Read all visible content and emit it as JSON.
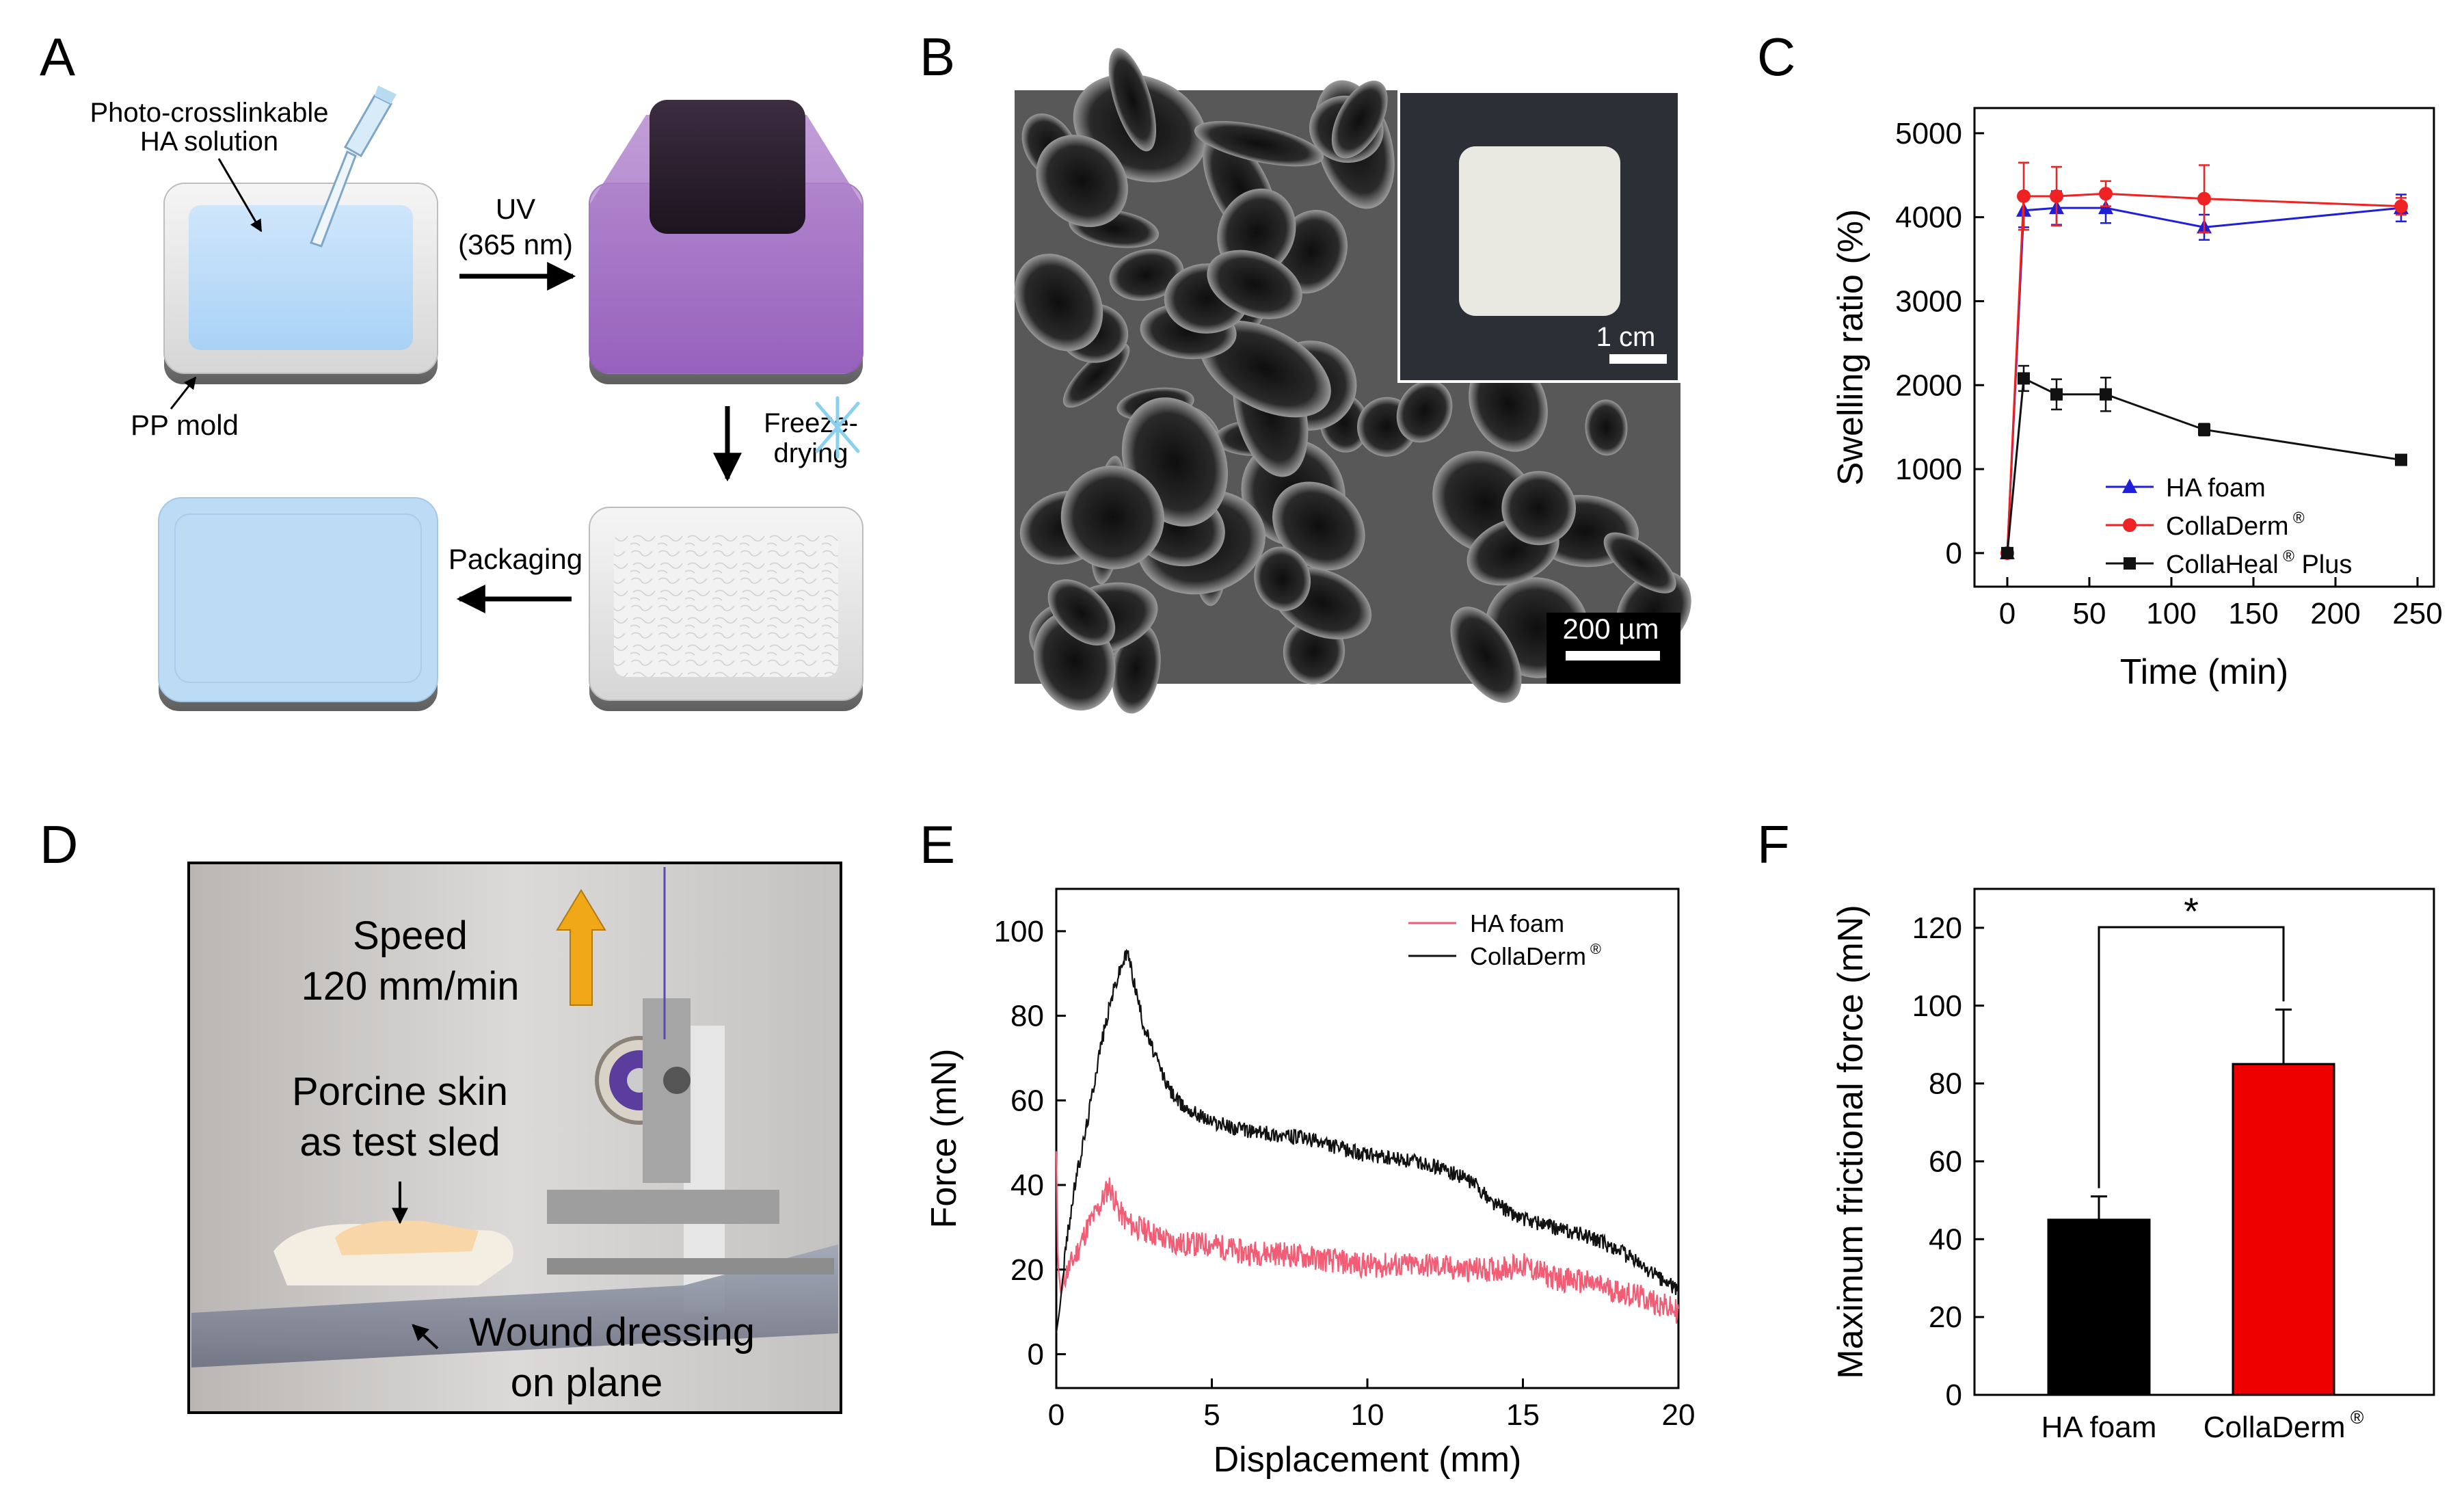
{
  "panel_letters": {
    "A": "A",
    "B": "B",
    "C": "C",
    "D": "D",
    "E": "E",
    "F": "F"
  },
  "panel_a": {
    "solution_label": [
      "Photo-crosslinkable",
      "HA solution"
    ],
    "uv_label": [
      "UV",
      "(365 nm)"
    ],
    "mold_label": "PP mold",
    "freeze_label": [
      "Freeze-",
      "drying"
    ],
    "packaging_label": "Packaging"
  },
  "panel_b": {
    "scale_main": "200 µm",
    "scale_inset": "1 cm"
  },
  "panel_d": {
    "speed_label": [
      "Speed",
      "120 mm/min"
    ],
    "sled_label": [
      "Porcine skin",
      "as test sled"
    ],
    "dressing_label": [
      "Wound dressing",
      "on plane"
    ]
  },
  "colors": {
    "red": "#ee2222",
    "blue": "#1f1fd8",
    "black": "#111111",
    "pink": "#f25c74",
    "arrow": "#f0a818"
  },
  "chart_data": [
    {
      "type": "line",
      "panel": "C",
      "xlabel": "Time (min)",
      "ylabel": "Swelling ratio (%)",
      "xlim": [
        -20,
        260
      ],
      "ylim": [
        -400,
        5300
      ],
      "xticks": [
        0,
        50,
        100,
        150,
        200,
        250
      ],
      "yticks": [
        0,
        1000,
        2000,
        3000,
        4000,
        5000
      ],
      "legend_position": "bottom-right",
      "x": [
        0,
        10,
        30,
        60,
        120,
        240
      ],
      "series": [
        {
          "name": "HA foam",
          "color": "#1f1fd8",
          "marker": "triangle",
          "values": [
            0,
            4080,
            4110,
            4110,
            3880,
            4110
          ],
          "errors": [
            0,
            200,
            200,
            180,
            150,
            160
          ]
        },
        {
          "name": "CollaDerm",
          "sup": "®",
          "color": "#ee2222",
          "marker": "circle",
          "values": [
            0,
            4250,
            4250,
            4280,
            4220,
            4130
          ],
          "errors": [
            0,
            400,
            350,
            150,
            400,
            100
          ]
        },
        {
          "name": "CollaHeal",
          "sup": "®",
          "suffix": " Plus",
          "color": "#111111",
          "marker": "square",
          "values": [
            0,
            2080,
            1890,
            1890,
            1470,
            1110
          ],
          "errors": [
            0,
            150,
            180,
            200,
            70,
            40
          ]
        }
      ]
    },
    {
      "type": "line",
      "panel": "E",
      "xlabel": "Displacement (mm)",
      "ylabel": "Force (mN)",
      "xlim": [
        0,
        20
      ],
      "ylim": [
        -8,
        110
      ],
      "xticks": [
        0,
        5,
        10,
        15,
        20
      ],
      "yticks": [
        0,
        20,
        40,
        60,
        80,
        100
      ],
      "legend_position": "top-right",
      "series": [
        {
          "name": "HA foam",
          "color": "#f25c74",
          "noise": 3,
          "x": [
            0,
            0.05,
            0.15,
            0.3,
            0.6,
            1.0,
            1.4,
            1.7,
            2.0,
            2.3,
            2.6,
            3.0,
            3.5,
            4.0,
            5.0,
            6.0,
            7.0,
            8.0,
            9.0,
            10.0,
            11.0,
            12.0,
            13.0,
            14.0,
            15.0,
            16.0,
            17.0,
            18.0,
            19.0,
            20.0
          ],
          "values": [
            48,
            22,
            14,
            19,
            23,
            30,
            35,
            40,
            34,
            31,
            30,
            29,
            27,
            26,
            26,
            24,
            24,
            23,
            22,
            21,
            21,
            21,
            20,
            20,
            21,
            18,
            17,
            15,
            13,
            10
          ]
        },
        {
          "name": "CollaDerm",
          "sup": "®",
          "color": "#111111",
          "noise": 1.8,
          "x": [
            0,
            0.1,
            0.3,
            0.6,
            1.0,
            1.4,
            1.8,
            2.1,
            2.3,
            2.5,
            2.8,
            3.2,
            3.6,
            4.0,
            4.5,
            5.0,
            6.0,
            7.0,
            8.0,
            9.0,
            10.0,
            11.0,
            12.0,
            13.0,
            13.5,
            14.0,
            15.0,
            16.0,
            17.0,
            18.0,
            19.0,
            20.0
          ],
          "values": [
            5,
            10,
            25,
            40,
            55,
            72,
            85,
            92,
            95,
            88,
            78,
            70,
            63,
            59,
            57,
            55,
            53,
            52,
            51,
            49,
            47,
            46,
            45,
            42,
            40,
            36,
            32,
            30,
            28,
            25,
            20,
            15
          ]
        }
      ]
    },
    {
      "type": "bar",
      "panel": "F",
      "ylabel": "Maximum frictional force (mN)",
      "ylim": [
        0,
        130
      ],
      "yticks": [
        0,
        20,
        40,
        60,
        80,
        100,
        120
      ],
      "categories": [
        "HA foam",
        "CollaDerm"
      ],
      "category_sup": [
        "",
        "®"
      ],
      "values": [
        45,
        85
      ],
      "errors": [
        6,
        14
      ],
      "colors": [
        "#000000",
        "#ee0000"
      ],
      "significance": "*"
    }
  ]
}
